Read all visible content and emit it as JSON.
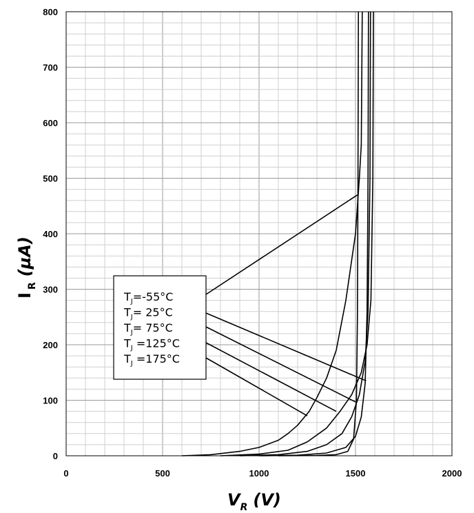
{
  "chart_data": {
    "type": "line",
    "title": "",
    "xlabel": {
      "main": "V",
      "sub": "R",
      "unit": "(V)"
    },
    "ylabel": {
      "main": "I",
      "sub": "R",
      "unit": "(µA)"
    },
    "xlim": [
      0,
      2000
    ],
    "ylim": [
      0,
      800
    ],
    "x_ticks": [
      0,
      500,
      1000,
      1500,
      2000
    ],
    "y_ticks": [
      0,
      100,
      200,
      300,
      400,
      500,
      600,
      700,
      800
    ],
    "grid": true,
    "legend": {
      "placement": "left-center",
      "entries": [
        {
          "prefix": "T",
          "sub": "J",
          "text": "=-55°C"
        },
        {
          "prefix": "T",
          "sub": "J",
          "text": "= 25°C"
        },
        {
          "prefix": "T",
          "sub": "J",
          "text": "= 75°C"
        },
        {
          "prefix": "T",
          "sub": "J",
          "text": " =125°C"
        },
        {
          "prefix": "T",
          "sub": "J",
          "text": " =175°C"
        }
      ]
    },
    "series": [
      {
        "temp": "-55°C",
        "pointer": [
          1510,
          470
        ],
        "points": [
          [
            1100,
            0
          ],
          [
            1300,
            0.5
          ],
          [
            1400,
            2
          ],
          [
            1460,
            8
          ],
          [
            1490,
            30
          ],
          [
            1505,
            100
          ],
          [
            1510,
            250
          ],
          [
            1513,
            500
          ],
          [
            1515,
            800
          ]
        ]
      },
      {
        "temp": "25°C",
        "pointer": [
          1555,
          135
        ],
        "points": [
          [
            1000,
            0
          ],
          [
            1200,
            1
          ],
          [
            1350,
            5
          ],
          [
            1450,
            15
          ],
          [
            1500,
            35
          ],
          [
            1530,
            70
          ],
          [
            1550,
            130
          ],
          [
            1560,
            260
          ],
          [
            1565,
            500
          ],
          [
            1567,
            800
          ]
        ]
      },
      {
        "temp": "75°C",
        "pointer": [
          1500,
          97
        ],
        "points": [
          [
            900,
            0
          ],
          [
            1100,
            2
          ],
          [
            1250,
            8
          ],
          [
            1350,
            20
          ],
          [
            1430,
            40
          ],
          [
            1480,
            70
          ],
          [
            1520,
            110
          ],
          [
            1550,
            170
          ],
          [
            1565,
            260
          ],
          [
            1575,
            500
          ],
          [
            1578,
            800
          ]
        ]
      },
      {
        "temp": "125°C",
        "pointer": [
          1400,
          80
        ],
        "points": [
          [
            800,
            0
          ],
          [
            1000,
            3
          ],
          [
            1150,
            10
          ],
          [
            1250,
            25
          ],
          [
            1350,
            50
          ],
          [
            1420,
            80
          ],
          [
            1480,
            110
          ],
          [
            1530,
            150
          ],
          [
            1560,
            200
          ],
          [
            1580,
            280
          ],
          [
            1590,
            500
          ],
          [
            1593,
            800
          ]
        ]
      },
      {
        "temp": "175°C",
        "pointer": [
          1250,
          72
        ],
        "points": [
          [
            600,
            0
          ],
          [
            750,
            2
          ],
          [
            900,
            8
          ],
          [
            1000,
            15
          ],
          [
            1100,
            28
          ],
          [
            1150,
            40
          ],
          [
            1200,
            55
          ],
          [
            1260,
            80
          ],
          [
            1300,
            105
          ],
          [
            1350,
            140
          ],
          [
            1400,
            190
          ],
          [
            1450,
            280
          ],
          [
            1500,
            400
          ],
          [
            1520,
            500
          ],
          [
            1530,
            560
          ],
          [
            1535,
            800
          ]
        ]
      }
    ]
  }
}
